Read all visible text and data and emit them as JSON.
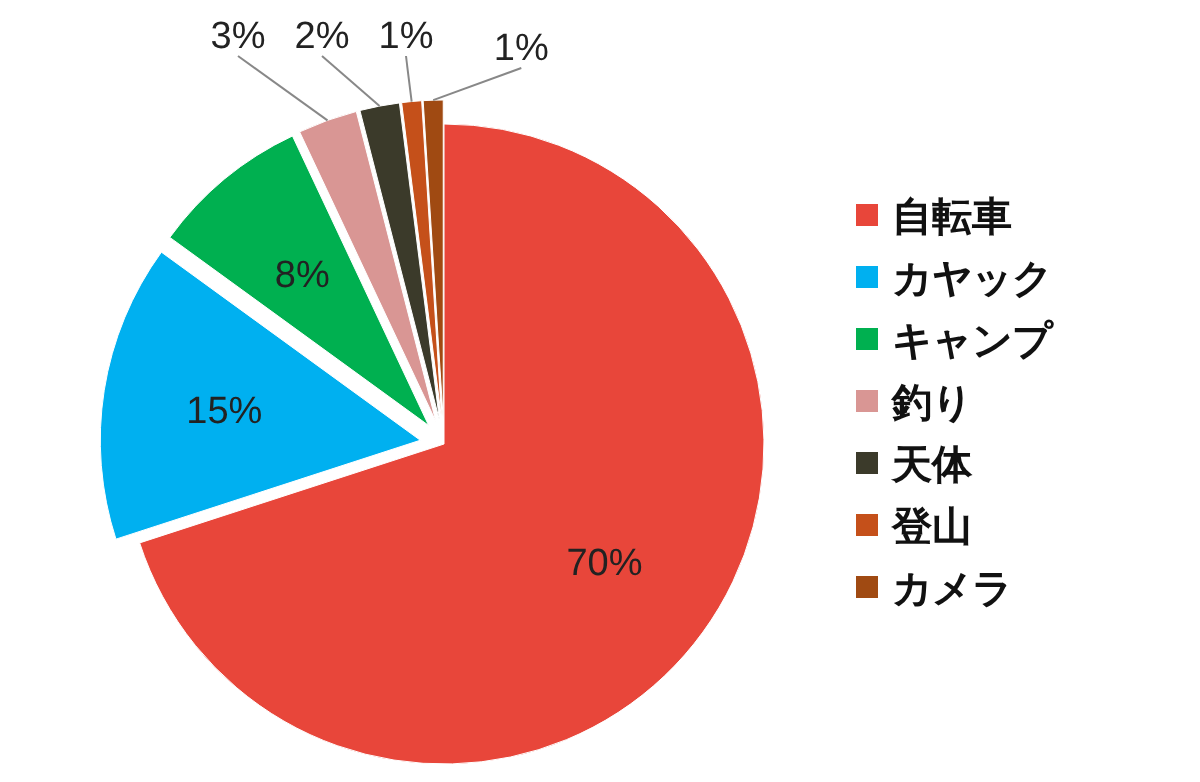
{
  "chart_data": {
    "type": "pie",
    "categories": [
      "自転車",
      "カヤック",
      "キャンプ",
      "釣り",
      "天体",
      "登山",
      "カメラ"
    ],
    "values": [
      70,
      15,
      8,
      3,
      2,
      1,
      1
    ],
    "colors": [
      "#e8463a",
      "#00b0f0",
      "#00b050",
      "#d99694",
      "#3b3a2a",
      "#c5501a",
      "#a04a12"
    ],
    "value_labels": [
      "70%",
      "15%",
      "8%",
      "3%",
      "2%",
      "1%",
      "1%"
    ],
    "legend": "right"
  }
}
